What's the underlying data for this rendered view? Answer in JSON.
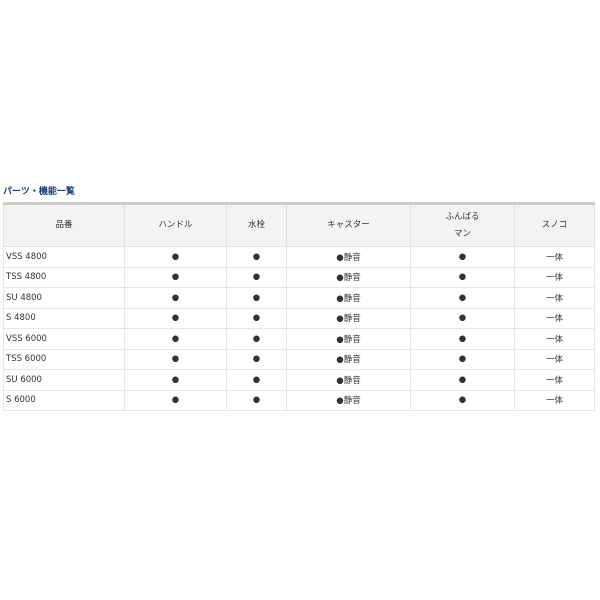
{
  "title": "パーツ・機能一覧",
  "headers": [
    "品番",
    "ハンドル",
    "水栓",
    "キャスター",
    "ふんばる\nマン",
    "スノコ"
  ],
  "rows": [
    [
      "VSS 4800",
      "●",
      "●",
      "●静音",
      "●",
      "一体"
    ],
    [
      "TSS 4800",
      "●",
      "●",
      "●静音",
      "●",
      "一体"
    ],
    [
      "SU 4800",
      "●",
      "●",
      "●静音",
      "●",
      "一体"
    ],
    [
      "S 4800",
      "●",
      "●",
      "●静音",
      "●",
      "一体"
    ],
    [
      "VSS 6000",
      "●",
      "●",
      "●静音",
      "●",
      "一体"
    ],
    [
      "TSS 6000",
      "●",
      "●",
      "●静音",
      "●",
      "一体"
    ],
    [
      "SU 6000",
      "●",
      "●",
      "●静音",
      "●",
      "一体"
    ],
    [
      "S 6000",
      "●",
      "●",
      "●静音",
      "●",
      "一体"
    ]
  ]
}
